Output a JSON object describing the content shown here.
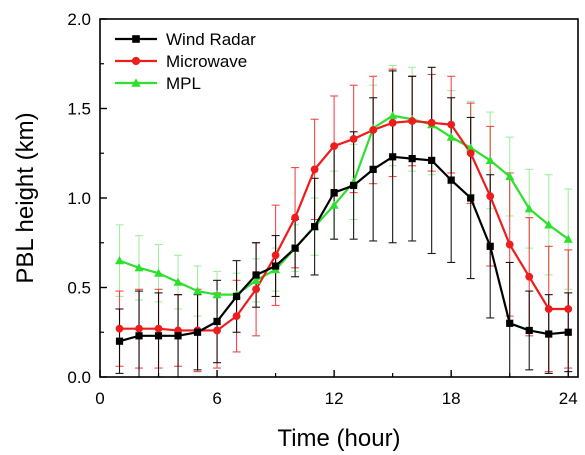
{
  "chart_data": {
    "type": "line",
    "xlabel": "Time (hour)",
    "ylabel": "PBL height (km)",
    "xlim": [
      0,
      24.5
    ],
    "ylim": [
      0,
      2.0
    ],
    "xticks": [
      0,
      6,
      12,
      18,
      24
    ],
    "yticks": [
      0.0,
      0.5,
      1.0,
      1.5,
      2.0
    ],
    "xtick_labels": [
      "0",
      "6",
      "12",
      "18",
      "24"
    ],
    "ytick_labels": [
      "0.0",
      "0.5",
      "1.0",
      "1.5",
      "2.0"
    ],
    "x": [
      1,
      2,
      3,
      4,
      5,
      6,
      7,
      8,
      9,
      10,
      11,
      12,
      13,
      14,
      15,
      16,
      17,
      18,
      19,
      20,
      21,
      22,
      23,
      24
    ],
    "legend_position": "top-left",
    "grid": false,
    "series": [
      {
        "name": "Wind Radar",
        "color": "#000000",
        "marker": "square",
        "values": [
          0.2,
          0.23,
          0.23,
          0.23,
          0.25,
          0.31,
          0.45,
          0.57,
          0.62,
          0.72,
          0.84,
          1.03,
          1.07,
          1.16,
          1.23,
          1.22,
          1.21,
          1.1,
          1.0,
          0.73,
          0.3,
          0.26,
          0.24,
          0.25
        ],
        "errors": [
          0.18,
          0.25,
          0.24,
          0.23,
          0.21,
          0.23,
          0.2,
          0.18,
          0.17,
          0.16,
          0.27,
          0.26,
          0.3,
          0.4,
          0.48,
          0.46,
          0.52,
          0.46,
          0.45,
          0.4,
          0.34,
          0.22,
          0.22,
          0.22
        ]
      },
      {
        "name": "Microwave",
        "color": "#ee1c1c",
        "marker": "circle",
        "values": [
          0.27,
          0.27,
          0.27,
          0.26,
          0.26,
          0.26,
          0.34,
          0.49,
          0.68,
          0.89,
          1.16,
          1.29,
          1.33,
          1.38,
          1.42,
          1.43,
          1.42,
          1.41,
          1.25,
          1.01,
          0.74,
          0.56,
          0.38,
          0.38
        ],
        "errors": [
          0.21,
          0.22,
          0.22,
          0.2,
          0.23,
          0.21,
          0.2,
          0.26,
          0.28,
          0.28,
          0.28,
          0.28,
          0.3,
          0.3,
          0.3,
          0.25,
          0.27,
          0.27,
          0.28,
          0.39,
          0.4,
          0.33,
          0.35,
          0.33
        ]
      },
      {
        "name": "MPL",
        "color": "#2ee02e",
        "marker": "triangle",
        "values": [
          0.65,
          0.61,
          0.58,
          0.53,
          0.48,
          0.46,
          0.46,
          0.54,
          0.6,
          0.72,
          0.84,
          0.96,
          1.09,
          1.39,
          1.46,
          1.44,
          1.41,
          1.34,
          1.28,
          1.21,
          1.12,
          0.94,
          0.85,
          0.77
        ],
        "errors": [
          0.2,
          0.18,
          0.16,
          0.15,
          0.14,
          0.13,
          0.12,
          0.12,
          0.12,
          0.13,
          0.16,
          0.19,
          0.21,
          0.24,
          0.28,
          0.29,
          0.28,
          0.26,
          0.26,
          0.27,
          0.22,
          0.22,
          0.28,
          0.28
        ]
      }
    ]
  }
}
